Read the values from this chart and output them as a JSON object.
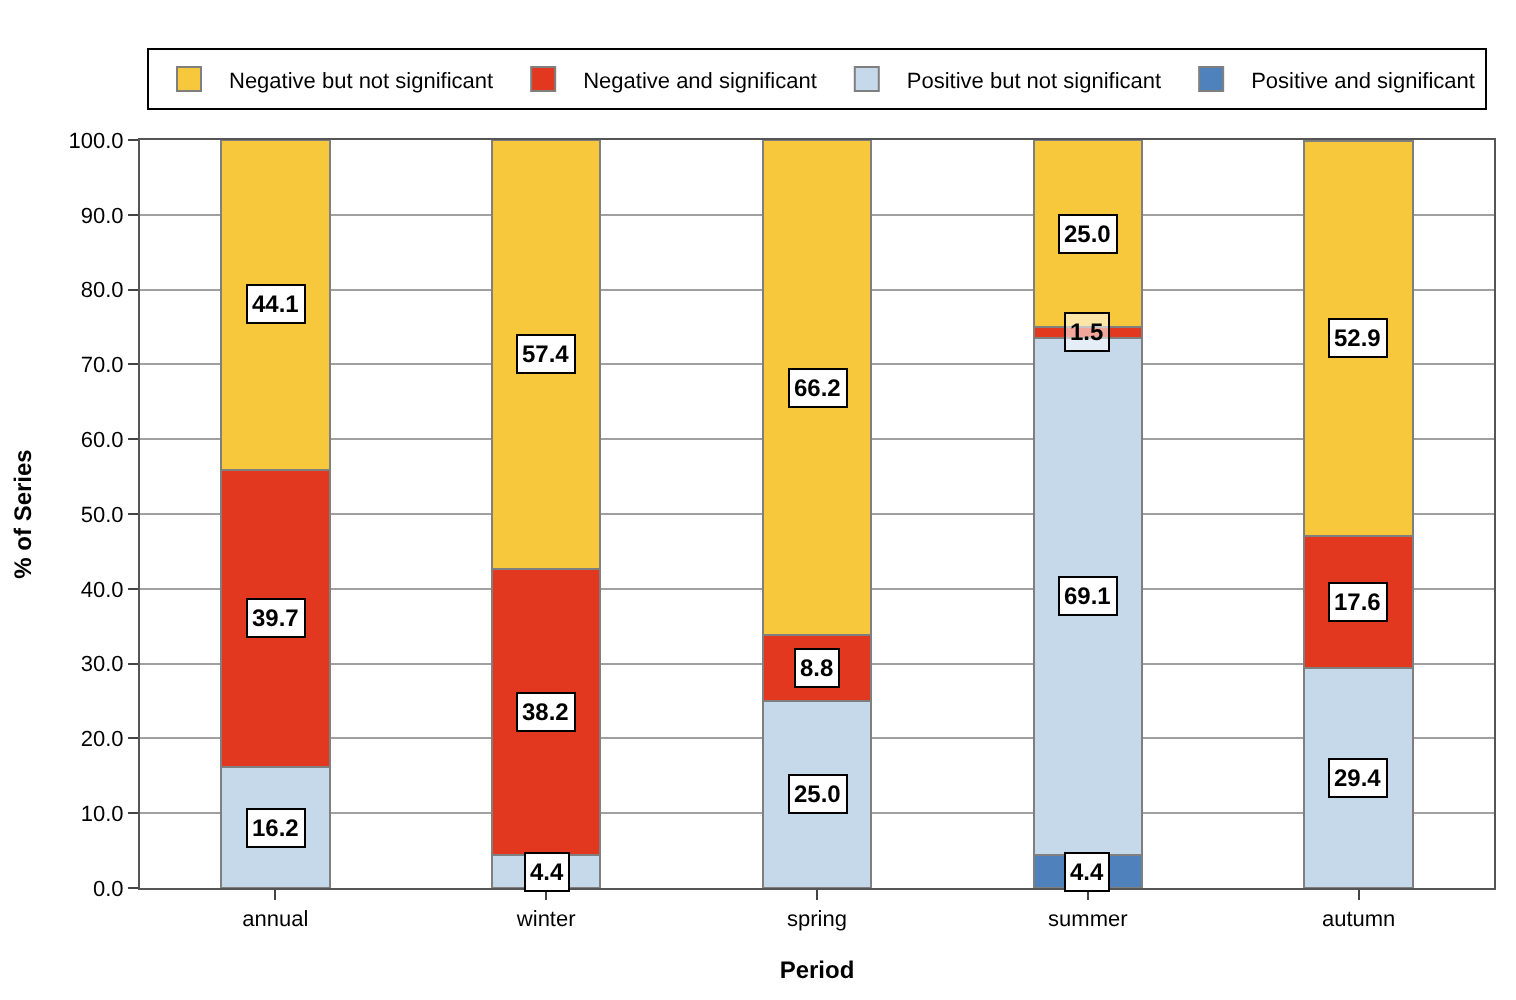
{
  "chart_data": {
    "type": "bar",
    "stacked": true,
    "xlabel": "Period",
    "ylabel": "% of Series",
    "categories": [
      "annual",
      "winter",
      "spring",
      "summer",
      "autumn"
    ],
    "series": [
      {
        "name": "Positive and significant",
        "color": "#4f81bd",
        "values": [
          0,
          0,
          0,
          4.4,
          0
        ],
        "value_labels": [
          null,
          null,
          null,
          "4.4",
          null
        ]
      },
      {
        "name": "Positive but not significant",
        "color": "#c6d9ea",
        "values": [
          16.2,
          4.4,
          25.0,
          69.1,
          29.4
        ],
        "value_labels": [
          "16.2",
          "4.4",
          "25.0",
          "69.1",
          "29.4"
        ]
      },
      {
        "name": "Negative and significant",
        "color": "#e2381f",
        "values": [
          39.7,
          38.2,
          8.8,
          1.5,
          17.6
        ],
        "value_labels": [
          "39.7",
          "38.2",
          "8.8",
          "1.5",
          "17.6"
        ]
      },
      {
        "name": "Negative but not significant",
        "color": "#f8c83c",
        "values": [
          44.1,
          57.4,
          66.2,
          25.0,
          52.9
        ],
        "value_labels": [
          "44.1",
          "57.4",
          "66.2",
          "25.0",
          "52.9"
        ]
      }
    ],
    "ylim": [
      0,
      100
    ],
    "yticks": [
      {
        "value": 0,
        "label": "0.0"
      },
      {
        "value": 10,
        "label": "10.0"
      },
      {
        "value": 20,
        "label": "20.0"
      },
      {
        "value": 30,
        "label": "30.0"
      },
      {
        "value": 40,
        "label": "40.0"
      },
      {
        "value": 50,
        "label": "50.0"
      },
      {
        "value": 60,
        "label": "60.0"
      },
      {
        "value": 70,
        "label": "70.0"
      },
      {
        "value": 80,
        "label": "80.0"
      },
      {
        "value": 90,
        "label": "90.0"
      },
      {
        "value": 100,
        "label": "100.0"
      }
    ],
    "grid": "y",
    "legend": "top"
  }
}
